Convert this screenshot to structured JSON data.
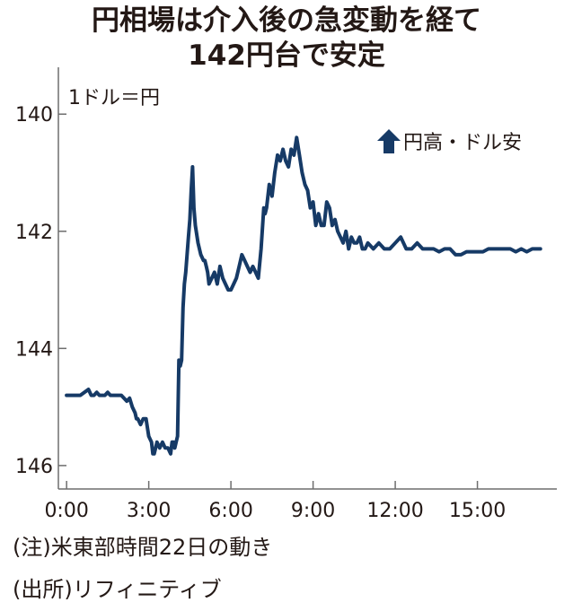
{
  "title": [
    "円相場は介入後の急変動を経て",
    "142円台で安定"
  ],
  "unit_label": "1ドル＝円",
  "annotation": "円高・ドル安",
  "notes": [
    "(注)米東部時間22日の動き",
    "(出所)リフィニティブ"
  ],
  "colors": {
    "line": "#163a66",
    "axis": "#6e6e6e",
    "text": "#231815"
  },
  "icons": {
    "annotation": "up-arrow-icon"
  },
  "chart_data": {
    "type": "line",
    "title": "円相場は介入後の急変動を経て142円台で安定",
    "xlabel": "",
    "ylabel": "1ドル＝円",
    "x_tick_labels": [
      "0:00",
      "3:00",
      "6:00",
      "9:00",
      "12:00",
      "15:00"
    ],
    "x_ticks": [
      0,
      3,
      6,
      9,
      12,
      15
    ],
    "y_tick_labels": [
      "140",
      "142",
      "144",
      "146"
    ],
    "y_ticks": [
      140,
      142,
      144,
      146
    ],
    "xlim": [
      -0.3,
      17.9
    ],
    "ylim": [
      146.4,
      139.2
    ],
    "y_axis_inverted": true,
    "grid": false,
    "series": [
      {
        "x": [
          0.0,
          0.3,
          0.5,
          0.8,
          0.9,
          1.0,
          1.1,
          1.2,
          1.4,
          1.5,
          1.6,
          1.8,
          2.0,
          2.2,
          2.3,
          2.4,
          2.5,
          2.55,
          2.6,
          2.7,
          2.8,
          2.9,
          3.0,
          3.1,
          3.15,
          3.2,
          3.3,
          3.4,
          3.5,
          3.6,
          3.7,
          3.8,
          3.85,
          3.9,
          3.95,
          4.0,
          4.05,
          4.1,
          4.15,
          4.2,
          4.25,
          4.3,
          4.35,
          4.4,
          4.45,
          4.5,
          4.55,
          4.6,
          4.65,
          4.7,
          4.8,
          4.9,
          5.0,
          5.05,
          5.1,
          5.15,
          5.2,
          5.3,
          5.4,
          5.5,
          5.6,
          5.7,
          5.8,
          5.9,
          6.0,
          6.1,
          6.2,
          6.3,
          6.4,
          6.5,
          6.6,
          6.7,
          6.8,
          6.9,
          7.0,
          7.1,
          7.2,
          7.25,
          7.3,
          7.4,
          7.5,
          7.6,
          7.7,
          7.8,
          7.9,
          8.0,
          8.1,
          8.2,
          8.3,
          8.4,
          8.5,
          8.6,
          8.7,
          8.8,
          8.9,
          9.0,
          9.1,
          9.2,
          9.3,
          9.4,
          9.5,
          9.6,
          9.7,
          9.8,
          9.9,
          10.0,
          10.1,
          10.2,
          10.3,
          10.4,
          10.5,
          10.6,
          10.7,
          10.8,
          10.9,
          11.0,
          11.2,
          11.4,
          11.6,
          11.8,
          12.0,
          12.2,
          12.4,
          12.6,
          12.8,
          13.0,
          13.2,
          13.4,
          13.6,
          13.8,
          14.0,
          14.2,
          14.4,
          14.6,
          14.8,
          15.0,
          15.2,
          15.4,
          15.6,
          15.8,
          16.0,
          16.2,
          16.4,
          16.6,
          16.8,
          17.0,
          17.3
        ],
        "y": [
          144.8,
          144.8,
          144.8,
          144.7,
          144.8,
          144.8,
          144.75,
          144.8,
          144.8,
          144.75,
          144.8,
          144.8,
          144.8,
          144.9,
          144.85,
          145.0,
          145.1,
          145.2,
          145.2,
          145.3,
          145.2,
          145.2,
          145.5,
          145.6,
          145.8,
          145.8,
          145.6,
          145.7,
          145.6,
          145.7,
          145.7,
          145.8,
          145.6,
          145.6,
          145.7,
          145.6,
          145.5,
          144.2,
          144.3,
          144.2,
          143.3,
          142.9,
          142.7,
          142.4,
          142.1,
          141.8,
          141.3,
          140.9,
          141.6,
          141.9,
          142.2,
          142.4,
          142.5,
          142.5,
          142.6,
          142.7,
          142.9,
          142.8,
          142.7,
          142.9,
          142.6,
          142.8,
          142.9,
          143.0,
          143.0,
          142.9,
          142.8,
          142.6,
          142.4,
          142.5,
          142.6,
          142.7,
          142.6,
          142.7,
          142.8,
          142.3,
          141.6,
          141.7,
          141.6,
          141.2,
          141.4,
          141.0,
          140.7,
          140.8,
          140.6,
          140.8,
          140.9,
          140.6,
          140.7,
          140.4,
          140.7,
          141.0,
          141.2,
          141.3,
          141.6,
          141.5,
          141.9,
          141.7,
          141.9,
          141.9,
          141.5,
          141.6,
          141.9,
          141.8,
          142.0,
          142.1,
          142.2,
          142.0,
          142.3,
          142.1,
          142.2,
          142.2,
          142.1,
          142.3,
          142.3,
          142.2,
          142.3,
          142.2,
          142.3,
          142.3,
          142.2,
          142.1,
          142.3,
          142.3,
          142.2,
          142.3,
          142.3,
          142.3,
          142.35,
          142.3,
          142.3,
          142.4,
          142.4,
          142.35,
          142.35,
          142.35,
          142.35,
          142.3,
          142.3,
          142.3,
          142.3,
          142.3,
          142.35,
          142.3,
          142.35,
          142.3,
          142.3
        ]
      }
    ]
  }
}
